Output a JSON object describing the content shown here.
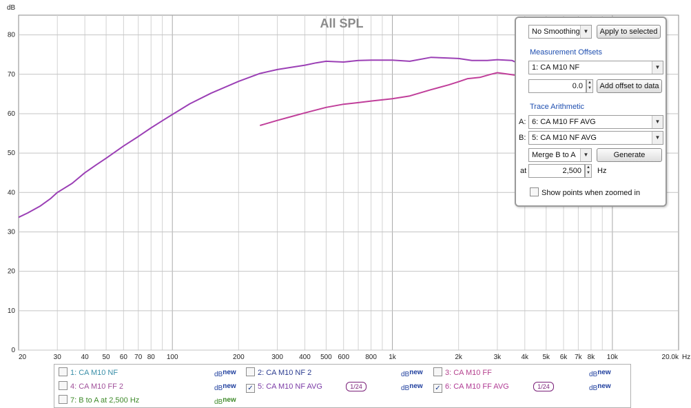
{
  "chart_data": {
    "type": "line",
    "title": "All SPL",
    "ylabel": "dB",
    "xunit": "Hz",
    "xscale": "log",
    "xlim": [
      20,
      20000
    ],
    "ylim": [
      0,
      85
    ],
    "grid": true,
    "yticks": [
      0,
      10,
      20,
      30,
      40,
      50,
      60,
      70,
      80
    ],
    "ytick_labels": [
      "0",
      "10",
      "20",
      "30",
      "40",
      "50",
      "60",
      "70",
      "80"
    ],
    "xticks": [
      20,
      30,
      40,
      50,
      60,
      70,
      80,
      100,
      200,
      300,
      400,
      500,
      600,
      800,
      1000,
      2000,
      3000,
      4000,
      5000,
      6000,
      7000,
      8000,
      10000,
      20000
    ],
    "xtick_labels": [
      "20",
      "30",
      "40",
      "50",
      "60",
      "70",
      "80",
      "100",
      "200",
      "300",
      "400",
      "500",
      "600",
      "800",
      "1k",
      "2k",
      "3k",
      "4k",
      "5k",
      "6k",
      "7k",
      "8k",
      "10k",
      "20.0k"
    ],
    "series": [
      {
        "name": "5: CA M10 NF AVG",
        "color": "#9b3fb5",
        "x": [
          20,
          22,
          25,
          28,
          30,
          35,
          40,
          45,
          50,
          60,
          70,
          80,
          90,
          100,
          120,
          150,
          200,
          250,
          300,
          350,
          400,
          450,
          500,
          550,
          600,
          700,
          800,
          1000,
          1200,
          1500,
          1800,
          2000,
          2300,
          2700,
          3000,
          3500,
          3800
        ],
        "y": [
          33.7,
          34.8,
          36.5,
          38.5,
          40,
          42.3,
          45,
          47,
          48.7,
          51.8,
          54.2,
          56.4,
          58.2,
          59.8,
          62.5,
          65.2,
          68.2,
          70.2,
          71.2,
          71.8,
          72.3,
          72.9,
          73.3,
          73.2,
          73.1,
          73.5,
          73.6,
          73.6,
          73.3,
          74.3,
          74.1,
          74.0,
          73.5,
          73.5,
          73.7,
          73.5,
          72.6
        ]
      },
      {
        "name": "6: CA M10 FF AVG",
        "color": "#c03e9a",
        "x": [
          250,
          300,
          350,
          400,
          500,
          600,
          700,
          800,
          1000,
          1200,
          1500,
          1800,
          2000,
          2200,
          2500,
          2800,
          3000,
          3300,
          3700
        ],
        "y": [
          57,
          58.3,
          59.3,
          60.2,
          61.6,
          62.4,
          62.8,
          63.2,
          63.8,
          64.5,
          66.1,
          67.3,
          68.1,
          68.9,
          69.2,
          70,
          70.4,
          70.1,
          69.7
        ]
      }
    ]
  },
  "controls": {
    "smoothing_value": "No Smoothing",
    "apply_button": "Apply to selected",
    "offsets_header": "Measurement Offsets",
    "offset_measurement": "1: CA M10 NF",
    "offset_value": "0.0",
    "add_offset_button": "Add offset to data",
    "arith_header": "Trace Arithmetic",
    "a_label": "A:",
    "a_value": "6: CA M10 FF AVG",
    "b_label": "B:",
    "b_value": "5: CA M10 NF AVG",
    "operation_value": "Merge B to A",
    "generate_button": "Generate",
    "at_label": "at",
    "at_value": "2,500",
    "hz_label": "Hz",
    "show_points_label": "Show points when zoomed in"
  },
  "legend": {
    "items": [
      {
        "label": "1: CA M10 NF",
        "checked": false,
        "color": "#3a8fa8"
      },
      {
        "label": "2: CA M10 NF 2",
        "checked": false,
        "color": "#2a3b8f"
      },
      {
        "label": "3: CA M10 FF",
        "checked": false,
        "color": "#b5428e"
      },
      {
        "label": "4: CA M10 FF 2",
        "checked": false,
        "color": "#a0509a"
      },
      {
        "label": "5: CA M10 NF AVG",
        "checked": true,
        "color": "#7a3aa5"
      },
      {
        "label": "6: CA M10 FF AVG",
        "checked": true,
        "color": "#b03a94"
      },
      {
        "label": "7: B to A at 2,500 Hz",
        "checked": false,
        "color": "#3e8a2a"
      }
    ],
    "dbnew_prefix": "dB",
    "dbnew_suffix": "new",
    "smoothing_badge": "1/24",
    "check_mark": "✓"
  }
}
